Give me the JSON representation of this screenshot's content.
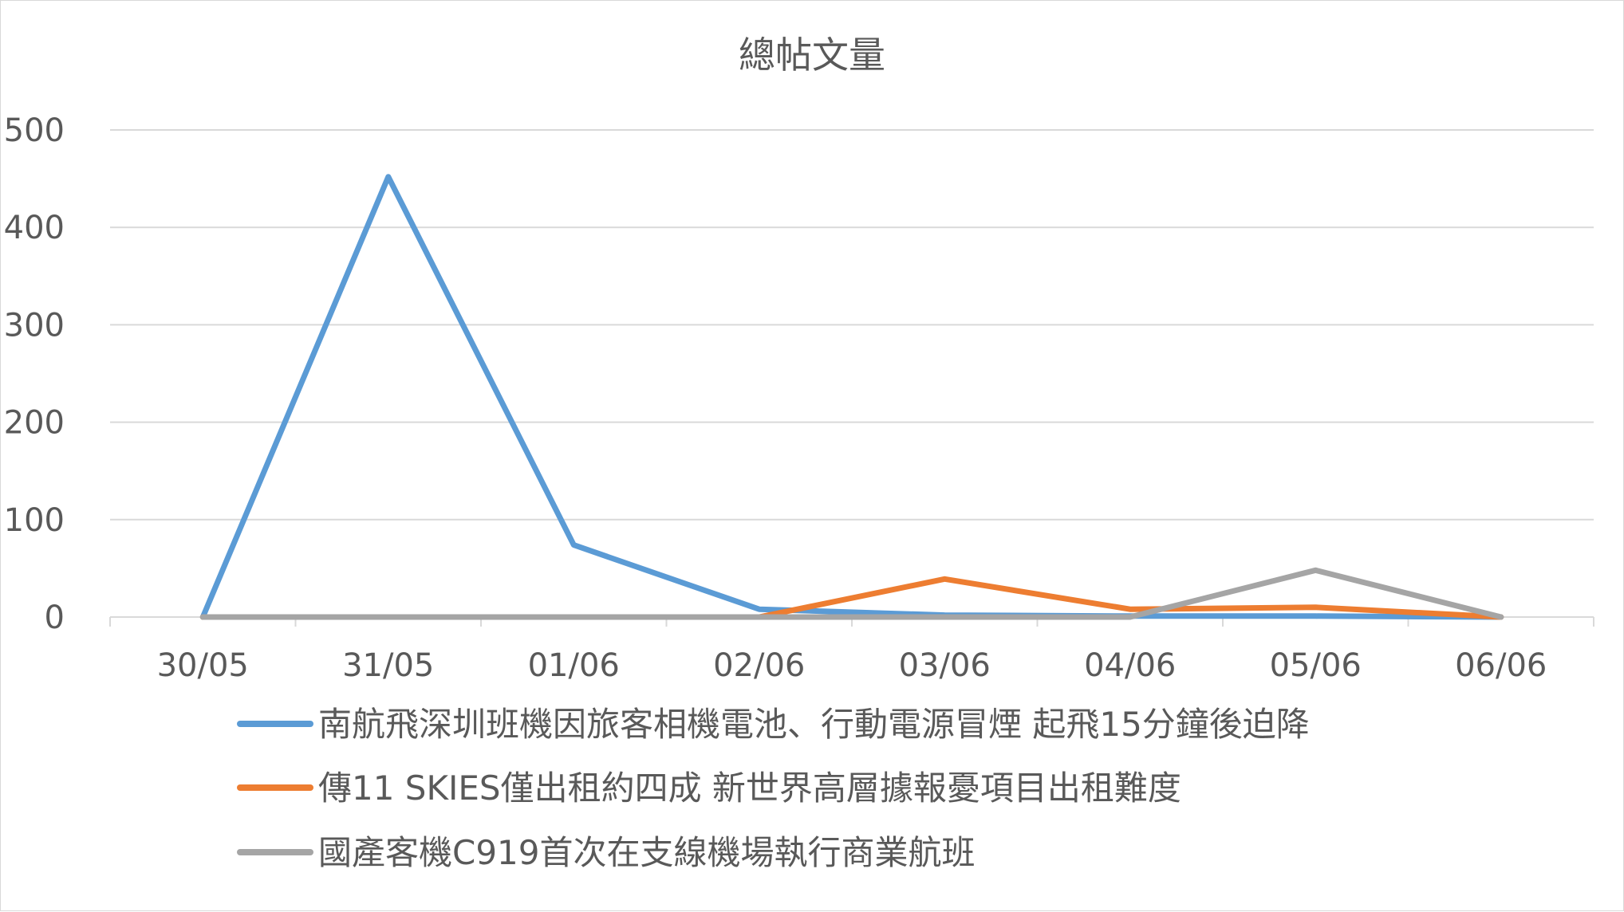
{
  "chart_data": {
    "type": "line",
    "title": "總帖文量",
    "xlabel": "",
    "ylabel": "",
    "categories": [
      "30/05",
      "31/05",
      "01/06",
      "02/06",
      "03/06",
      "04/06",
      "05/06",
      "06/06"
    ],
    "ylim": [
      0,
      500
    ],
    "yticks": [
      0,
      100,
      200,
      300,
      400,
      500
    ],
    "grid": true,
    "legend_position": "bottom",
    "series": [
      {
        "name": "南航飛深圳班機因旅客相機電池、行動電源冒煙 起飛15分鐘後迫降",
        "color": "#5b9bd5",
        "values": [
          0,
          452,
          74,
          8,
          2,
          1,
          1,
          0
        ]
      },
      {
        "name": "傳11 SKIES僅出租約四成 新世界高層據報憂項目出租難度",
        "color": "#ed7d31",
        "values": [
          0,
          0,
          0,
          0,
          39,
          8,
          10,
          0
        ]
      },
      {
        "name": "國產客機C919首次在支線機場執行商業航班",
        "color": "#a5a5a5",
        "values": [
          0,
          0,
          0,
          0,
          0,
          0,
          48,
          0
        ]
      }
    ],
    "colors": {
      "grid": "#d9d9d9",
      "axis": "#d9d9d9",
      "text": "#595959"
    }
  }
}
